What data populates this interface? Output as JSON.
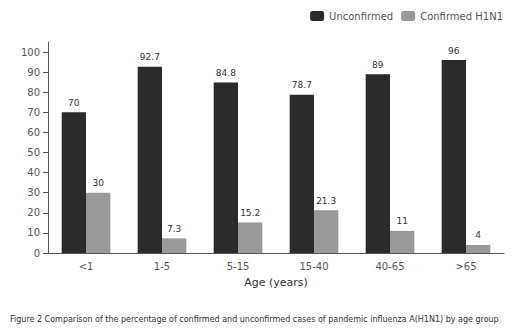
{
  "chart_data": {
    "type": "bar",
    "categories": [
      "<1",
      "1-5",
      "5-15",
      "15-40",
      "40-65",
      ">65"
    ],
    "series": [
      {
        "name": "Unconfirmed",
        "color": "#2b2b2b",
        "values": [
          70,
          92.7,
          84.8,
          78.7,
          89,
          96
        ]
      },
      {
        "name": "Confirmed H1N1",
        "color": "#999999",
        "values": [
          30,
          7.3,
          15.2,
          21.3,
          11,
          4
        ]
      }
    ],
    "xlabel": "Age (years)",
    "ylim": [
      0,
      105
    ],
    "yticks": [
      0,
      10,
      20,
      30,
      40,
      50,
      60,
      70,
      80,
      90,
      100
    ],
    "grid": false,
    "legend": "upper right",
    "data_labels": true,
    "caption": "Figure 2 Comparison of the percentage of confirmed and unconfirmed cases of pandemic influenza A(H1N1) by age group"
  }
}
